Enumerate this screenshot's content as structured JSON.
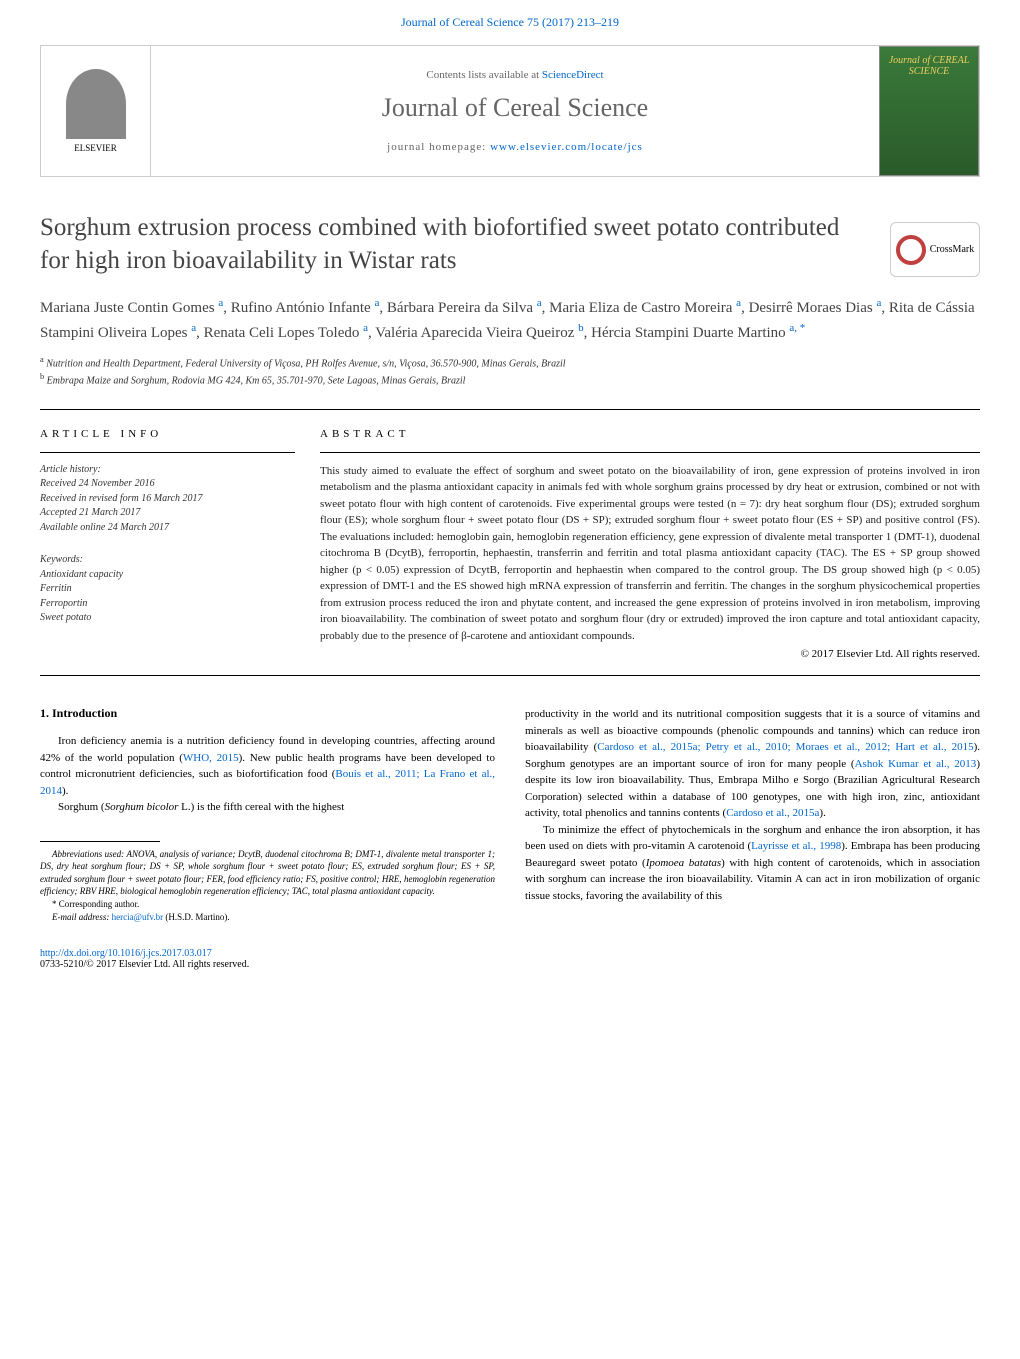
{
  "top_link": {
    "text": "Journal of Cereal Science 75 (2017) 213–219",
    "color": "#0066cc"
  },
  "header": {
    "elsevier_label": "ELSEVIER",
    "contents_prefix": "Contents lists available at ",
    "contents_link": "ScienceDirect",
    "journal_name": "Journal of Cereal Science",
    "homepage_prefix": "journal homepage: ",
    "homepage_link": "www.elsevier.com/locate/jcs",
    "cover_text": "Journal of CEREAL SCIENCE"
  },
  "crossmark_label": "CrossMark",
  "title": "Sorghum extrusion process combined with biofortified sweet potato contributed for high iron bioavailability in Wistar rats",
  "authors_html": "Mariana Juste Contin Gomes <sup class='sup-link'>a</sup>, Rufino António Infante <sup class='sup-link'>a</sup>, Bárbara Pereira da Silva <sup class='sup-link'>a</sup>, Maria Eliza de Castro Moreira <sup class='sup-link'>a</sup>, Desirrê Moraes Dias <sup class='sup-link'>a</sup>, Rita de Cássia Stampini Oliveira Lopes <sup class='sup-link'>a</sup>, Renata Celi Lopes Toledo <sup class='sup-link'>a</sup>, Valéria Aparecida Vieira Queiroz <sup class='sup-link'>b</sup>, Hércia Stampini Duarte Martino <sup class='sup-link'>a, *</sup>",
  "affiliations": {
    "a": "Nutrition and Health Department, Federal University of Viçosa, PH Rolfes Avenue, s/n, Viçosa, 36.570-900, Minas Gerais, Brazil",
    "b": "Embrapa Maize and Sorghum, Rodovia MG 424, Km 65, 35.701-970, Sete Lagoas, Minas Gerais, Brazil"
  },
  "article_info_heading": "ARTICLE INFO",
  "abstract_heading": "ABSTRACT",
  "history": {
    "label": "Article history:",
    "received": "Received 24 November 2016",
    "revised": "Received in revised form 16 March 2017",
    "accepted": "Accepted 21 March 2017",
    "online": "Available online 24 March 2017"
  },
  "keywords": {
    "label": "Keywords:",
    "items": [
      "Antioxidant capacity",
      "Ferritin",
      "Ferroportin",
      "Sweet potato"
    ]
  },
  "abstract_text": "This study aimed to evaluate the effect of sorghum and sweet potato on the bioavailability of iron, gene expression of proteins involved in iron metabolism and the plasma antioxidant capacity in animals fed with whole sorghum grains processed by dry heat or extrusion, combined or not with sweet potato flour with high content of carotenoids. Five experimental groups were tested (n = 7): dry heat sorghum flour (DS); extruded sorghum flour (ES); whole sorghum flour + sweet potato flour (DS + SP); extruded sorghum flour + sweet potato flour (ES + SP) and positive control (FS). The evaluations included: hemoglobin gain, hemoglobin regeneration efficiency, gene expression of divalente metal transporter 1 (DMT-1), duodenal citochroma B (DcytB), ferroportin, hephaestin, transferrin and ferritin and total plasma antioxidant capacity (TAC). The ES + SP group showed higher (p < 0.05) expression of DcytB, ferroportin and hephaestin when compared to the control group. The DS group showed high (p < 0.05) expression of DMT-1 and the ES showed high mRNA expression of transferrin and ferritin. The changes in the sorghum physicochemical properties from extrusion process reduced the iron and phytate content, and increased the gene expression of proteins involved in iron metabolism, improving iron bioavailability. The combination of sweet potato and sorghum flour (dry or extruded) improved the iron capture and total antioxidant capacity, probably due to the presence of β-carotene and antioxidant compounds.",
  "copyright": "© 2017 Elsevier Ltd. All rights reserved.",
  "intro_heading": "1. Introduction",
  "intro_p1": "Iron deficiency anemia is a nutrition deficiency found in developing countries, affecting around 42% of the world population (WHO, 2015). New public health programs have been developed to control micronutrient deficiencies, such as biofortification food (Bouis et al., 2011; La Frano et al., 2014).",
  "intro_p2": "Sorghum (Sorghum bicolor L.) is the fifth cereal with the highest",
  "intro_right_p1": "productivity in the world and its nutritional composition suggests that it is a source of vitamins and minerals as well as bioactive compounds (phenolic compounds and tannins) which can reduce iron bioavailability (Cardoso et al., 2015a; Petry et al., 2010; Moraes et al., 2012; Hart et al., 2015). Sorghum genotypes are an important source of iron for many people (Ashok Kumar et al., 2013) despite its low iron bioavailability. Thus, Embrapa Milho e Sorgo (Brazilian Agricultural Research Corporation) selected within a database of 100 genotypes, one with high iron, zinc, antioxidant activity, total phenolics and tannins contents (Cardoso et al., 2015a).",
  "intro_right_p2": "To minimize the effect of phytochemicals in the sorghum and enhance the iron absorption, it has been used on diets with pro-vitamin A carotenoid (Layrisse et al., 1998). Embrapa has been producing Beauregard sweet potato (Ipomoea batatas) with high content of carotenoids, which in association with sorghum can increase the iron bioavailability. Vitamin A can act in iron mobilization of organic tissue stocks, favoring the availability of this",
  "abbreviations": "Abbreviations used: ANOVA, analysis of variance; DcytB, duodenal citochroma B; DMT-1, divalente metal transporter 1; DS, dry heat sorghum flour; DS + SP, whole sorghum flour + sweet potato flour; ES, extruded sorghum flour; ES + SP, extruded sorghum flour + sweet potato flour; FER, food efficiency ratio; FS, positive control; HRE, hemoglobin regeneration efficiency; RBV HRE, biological hemoglobin regeneration efficiency; TAC, total plasma antioxidant capacity.",
  "corresponding": "* Corresponding author.",
  "email_label": "E-mail address: ",
  "email": "hercia@ufv.br",
  "email_suffix": " (H.S.D. Martino).",
  "footer": {
    "doi": "http://dx.doi.org/10.1016/j.jcs.2017.03.017",
    "issn": "0733-5210/© 2017 Elsevier Ltd. All rights reserved."
  },
  "citation_links": {
    "who": "WHO, 2015",
    "bouis": "Bouis et al., 2011; La Frano et al., 2014",
    "cardoso1": "Cardoso et al., 2015a; Petry et al., 2010; Moraes et al., 2012; Hart et al., 2015",
    "ashok": "Ashok Kumar et al., 2013",
    "cardoso2": "Cardoso et al., 2015a",
    "layrisse": "Layrisse et al., 1998"
  }
}
